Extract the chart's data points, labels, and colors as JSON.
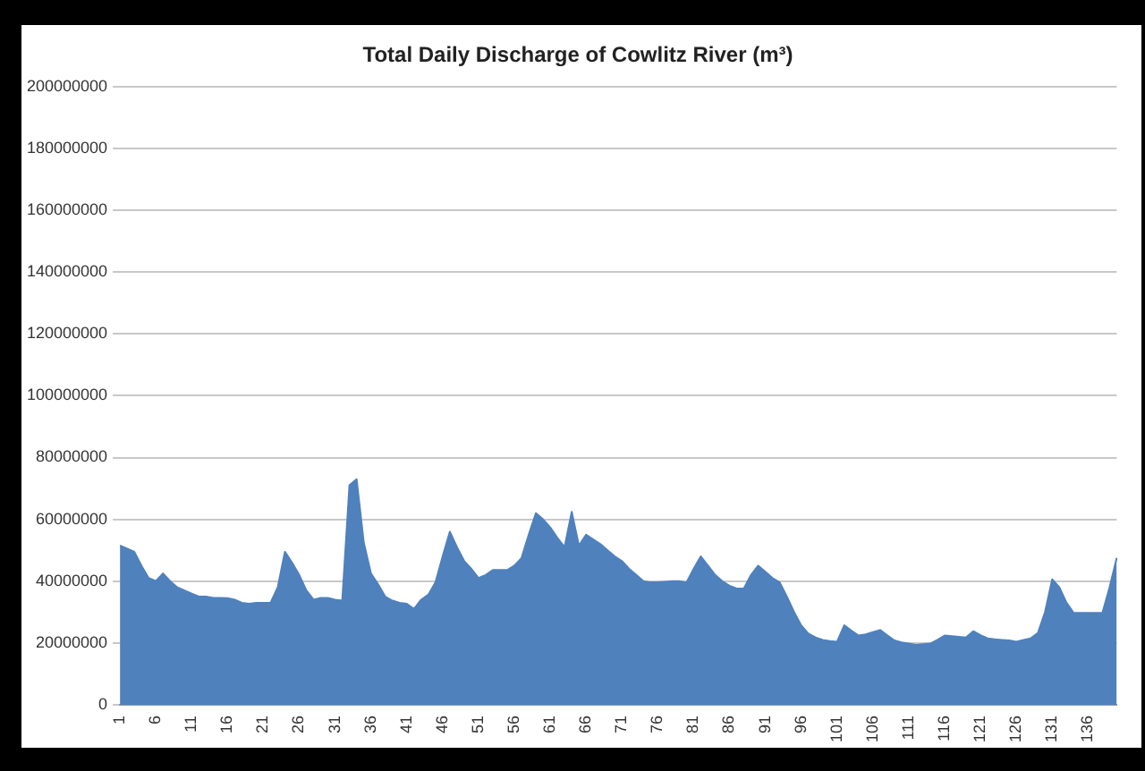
{
  "chart_data": {
    "type": "area",
    "title": "Total Daily Discharge of Cowlitz River (m³)",
    "categories": [
      "1",
      null,
      null,
      null,
      null,
      "6",
      null,
      null,
      null,
      null,
      "11",
      null,
      null,
      null,
      null,
      "16",
      null,
      null,
      null,
      null,
      "21",
      null,
      null,
      null,
      null,
      "26",
      null,
      null,
      null,
      null,
      "31",
      null,
      null,
      null,
      null,
      "36",
      null,
      null,
      null,
      null,
      "41",
      null,
      null,
      null,
      null,
      "46",
      null,
      null,
      null,
      null,
      "51",
      null,
      null,
      null,
      null,
      "56",
      null,
      null,
      null,
      null,
      "61",
      null,
      null,
      null,
      null,
      "66",
      null,
      null,
      null,
      null,
      "71",
      null,
      null,
      null,
      null,
      "76",
      null,
      null,
      null,
      null,
      "81",
      null,
      null,
      null,
      null,
      "86",
      null,
      null,
      null,
      null,
      "91",
      null,
      null,
      null,
      null,
      "96",
      null,
      null,
      null,
      null,
      "101",
      null,
      null,
      null,
      null,
      "106",
      null,
      null,
      null,
      null,
      "111",
      null,
      null,
      null,
      null,
      "116",
      null,
      null,
      null,
      null,
      "121",
      null,
      null,
      null,
      null,
      "126",
      null,
      null,
      null,
      null,
      "131",
      null,
      null,
      null,
      null,
      "136",
      null,
      null,
      null,
      null
    ],
    "values": [
      51500000,
      50500000,
      49500000,
      45000000,
      41000000,
      40000000,
      42500000,
      40000000,
      38000000,
      37000000,
      36000000,
      35000000,
      35000000,
      34600000,
      34600000,
      34500000,
      34000000,
      33000000,
      32700000,
      33000000,
      33000000,
      33000000,
      38000000,
      49500000,
      46000000,
      42000000,
      37000000,
      34000000,
      34600000,
      34600000,
      34000000,
      33700000,
      71000000,
      73000000,
      52500000,
      42500000,
      39000000,
      35000000,
      33700000,
      33000000,
      32700000,
      31000000,
      34000000,
      35600000,
      39600000,
      48000000,
      56000000,
      51000000,
      46500000,
      44000000,
      41000000,
      42000000,
      43600000,
      43600000,
      43600000,
      45000000,
      47500000,
      55000000,
      62000000,
      60000000,
      57400000,
      54000000,
      51000000,
      62400000,
      51500000,
      55000000,
      53500000,
      52000000,
      50000000,
      48000000,
      46500000,
      44000000,
      42000000,
      40000000,
      39600000,
      39600000,
      39800000,
      40000000,
      40000000,
      39600000,
      44000000,
      48000000,
      45000000,
      42000000,
      40000000,
      38500000,
      37600000,
      37600000,
      42000000,
      45000000,
      43000000,
      41000000,
      39600000,
      35000000,
      30000000,
      25700000,
      23000000,
      21800000,
      21000000,
      20600000,
      20400000,
      25700000,
      24000000,
      22400000,
      22800000,
      23500000,
      24200000,
      22500000,
      20800000,
      20200000,
      19800000,
      19400000,
      19600000,
      19800000,
      21000000,
      22400000,
      22200000,
      22000000,
      21800000,
      23800000,
      22500000,
      21500000,
      21200000,
      21000000,
      20800000,
      20400000,
      21000000,
      21500000,
      23200000,
      30000000,
      40600000,
      38000000,
      33000000,
      29700000,
      29700000,
      29700000,
      29700000,
      29700000,
      38000000,
      47500000
    ],
    "color": "#4f81bd",
    "ylim": [
      0,
      200000000
    ],
    "yticks": [
      0,
      20000000,
      40000000,
      60000000,
      80000000,
      100000000,
      120000000,
      140000000,
      160000000,
      180000000,
      200000000
    ],
    "grid": "y"
  }
}
